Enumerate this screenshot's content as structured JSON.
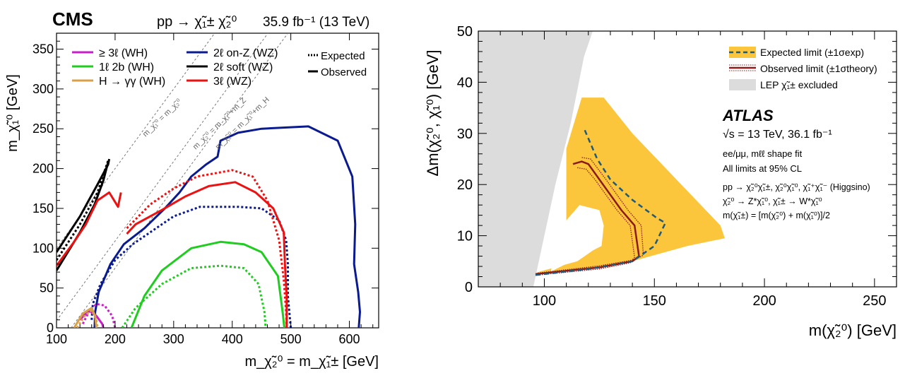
{
  "colors": {
    "magenta": "#c71fc7",
    "green": "#1fcc1f",
    "orange": "#d9a04a",
    "navy": "#0a1a8f",
    "black": "#000000",
    "red": "#ee1111",
    "dark_red": "#8b1a1a",
    "yellow": "#fbc63c",
    "dashblue": "#1f5a7a",
    "grey": "#dcdcdc"
  },
  "left_chart": {
    "experiment": "CMS",
    "process": "pp → χ̃₁± χ̃₂⁰",
    "lumi": "35.9 fb⁻¹ (13 TeV)",
    "xlabel": "m_χ̃₂⁰ = m_χ̃₁± [GeV]",
    "ylabel": "m_χ̃₁⁰ [GeV]",
    "xlim": [
      100,
      650
    ],
    "ylim": [
      0,
      370
    ],
    "x_ticks": [
      "100",
      "200",
      "300",
      "400",
      "500",
      "600"
    ],
    "y_ticks": [
      "0",
      "50",
      "100",
      "150",
      "200",
      "250",
      "300",
      "350"
    ],
    "diagonals": [
      {
        "label": "m_χ̃₁⁰ = m_χ̃₂⁰",
        "offset": 0
      },
      {
        "label": "m_χ̃₂⁰ = m_χ̃₁⁰+m_Z",
        "offset": 91
      },
      {
        "label": "m_χ̃₂⁰ = m_χ̃₁⁰+m_H",
        "offset": 125
      }
    ],
    "legend_left": [
      {
        "label": "≥ 3ℓ (WH)",
        "color_key": "magenta"
      },
      {
        "label": "1ℓ 2b (WH)",
        "color_key": "green"
      },
      {
        "label": "H → γγ (WH)",
        "color_key": "orange"
      }
    ],
    "legend_mid": [
      {
        "label": "2ℓ on-Z (WZ)",
        "color_key": "navy"
      },
      {
        "label": "2ℓ soft (WZ)",
        "color_key": "black"
      },
      {
        "label": "3ℓ (WZ)",
        "color_key": "red"
      }
    ],
    "legend_style": [
      {
        "label": "Expected",
        "style": "dotted"
      },
      {
        "label": "Observed",
        "style": "solid"
      }
    ],
    "series": [
      {
        "name": "2ℓ on-Z (WZ) observed",
        "color_key": "navy",
        "style": "solid",
        "points": [
          [
            165,
            0
          ],
          [
            166,
            20
          ],
          [
            172,
            45
          ],
          [
            192,
            80
          ],
          [
            215,
            105
          ],
          [
            250,
            125
          ],
          [
            285,
            150
          ],
          [
            310,
            170
          ],
          [
            330,
            190
          ],
          [
            355,
            205
          ],
          [
            375,
            215
          ],
          [
            380,
            235
          ],
          [
            410,
            245
          ],
          [
            450,
            250
          ],
          [
            530,
            253
          ],
          [
            580,
            235
          ],
          [
            605,
            190
          ],
          [
            610,
            130
          ],
          [
            608,
            80
          ],
          [
            615,
            45
          ],
          [
            618,
            20
          ],
          [
            616,
            0
          ]
        ]
      },
      {
        "name": "2ℓ on-Z (WZ) expected",
        "color_key": "navy",
        "style": "dotted",
        "points": [
          [
            160,
            10
          ],
          [
            162,
            30
          ],
          [
            175,
            55
          ],
          [
            200,
            85
          ],
          [
            230,
            105
          ],
          [
            270,
            125
          ],
          [
            300,
            140
          ],
          [
            345,
            152
          ],
          [
            410,
            152
          ],
          [
            450,
            150
          ],
          [
            480,
            135
          ],
          [
            492,
            110
          ],
          [
            495,
            80
          ],
          [
            495,
            40
          ],
          [
            500,
            0
          ]
        ]
      },
      {
        "name": "2ℓ soft (WZ) observed (right edge)",
        "color_key": "black",
        "style": "solid",
        "points": [
          [
            100,
            95
          ],
          [
            140,
            140
          ],
          [
            170,
            180
          ],
          [
            188,
            205
          ],
          [
            190,
            212
          ]
        ]
      },
      {
        "name": "2ℓ soft (WZ) observed (left edge)",
        "color_key": "black",
        "style": "solid",
        "points": [
          [
            100,
            72
          ],
          [
            140,
            120
          ],
          [
            165,
            155
          ],
          [
            180,
            185
          ],
          [
            188,
            208
          ]
        ]
      },
      {
        "name": "2ℓ soft (WZ) expected",
        "color_key": "black",
        "style": "dotted",
        "points": [
          [
            100,
            85
          ],
          [
            140,
            130
          ],
          [
            170,
            170
          ],
          [
            188,
            210
          ]
        ]
      },
      {
        "name": "3ℓ (WZ) observed, low-Δm",
        "color_key": "red",
        "style": "solid",
        "points": [
          [
            100,
            78
          ],
          [
            130,
            108
          ],
          [
            150,
            130
          ],
          [
            170,
            160
          ],
          [
            190,
            170
          ],
          [
            205,
            152
          ],
          [
            210,
            170
          ]
        ]
      },
      {
        "name": "3ℓ (WZ) observed",
        "color_key": "red",
        "style": "solid",
        "points": [
          [
            220,
            118
          ],
          [
            235,
            130
          ],
          [
            280,
            148
          ],
          [
            320,
            165
          ],
          [
            360,
            178
          ],
          [
            405,
            183
          ],
          [
            440,
            170
          ],
          [
            470,
            150
          ],
          [
            488,
            120
          ],
          [
            490,
            80
          ],
          [
            493,
            40
          ],
          [
            493,
            0
          ]
        ]
      },
      {
        "name": "3ℓ (WZ) expected",
        "color_key": "red",
        "style": "dotted",
        "points": [
          [
            220,
            125
          ],
          [
            240,
            140
          ],
          [
            260,
            155
          ],
          [
            300,
            175
          ],
          [
            340,
            190
          ],
          [
            400,
            198
          ],
          [
            435,
            190
          ],
          [
            460,
            160
          ],
          [
            480,
            110
          ],
          [
            488,
            60
          ],
          [
            492,
            20
          ],
          [
            493,
            0
          ]
        ]
      },
      {
        "name": "1ℓ 2b (WH) observed",
        "color_key": "green",
        "style": "solid",
        "points": [
          [
            228,
            0
          ],
          [
            250,
            40
          ],
          [
            280,
            72
          ],
          [
            330,
            100
          ],
          [
            380,
            108
          ],
          [
            420,
            105
          ],
          [
            450,
            95
          ],
          [
            478,
            65
          ],
          [
            486,
            20
          ],
          [
            489,
            0
          ]
        ]
      },
      {
        "name": "1ℓ 2b (WH) expected",
        "color_key": "green",
        "style": "dotted",
        "points": [
          [
            212,
            0
          ],
          [
            235,
            25
          ],
          [
            280,
            55
          ],
          [
            330,
            75
          ],
          [
            380,
            78
          ],
          [
            420,
            75
          ],
          [
            445,
            55
          ],
          [
            455,
            20
          ],
          [
            457,
            0
          ]
        ]
      },
      {
        "name": "≥ 3ℓ (WH) expected",
        "color_key": "magenta",
        "style": "dotted",
        "points": [
          [
            145,
            5
          ],
          [
            155,
            20
          ],
          [
            168,
            30
          ],
          [
            182,
            28
          ],
          [
            195,
            15
          ],
          [
            200,
            0
          ]
        ]
      },
      {
        "name": "≥ 3ℓ (WH) observed",
        "color_key": "magenta",
        "style": "solid",
        "points": [
          [
            140,
            10
          ],
          [
            155,
            22
          ],
          [
            168,
            15
          ],
          [
            178,
            5
          ],
          [
            180,
            0
          ]
        ]
      },
      {
        "name": "H → γγ (WH) observed",
        "color_key": "orange",
        "style": "solid",
        "points": [
          [
            130,
            0
          ],
          [
            145,
            18
          ],
          [
            160,
            25
          ],
          [
            166,
            15
          ],
          [
            168,
            0
          ]
        ]
      },
      {
        "name": "H → γγ (WH) expected",
        "color_key": "orange",
        "style": "dotted",
        "points": [
          [
            135,
            0
          ],
          [
            148,
            15
          ],
          [
            160,
            22
          ],
          [
            168,
            10
          ],
          [
            170,
            0
          ]
        ]
      }
    ]
  },
  "right_chart": {
    "experiment": "ATLAS",
    "energy": "√s = 13 TeV, 36.1 fb⁻¹",
    "fit": "ee/μμ, mℓℓ shape fit",
    "cl": "All limits at 95% CL",
    "proc1": "pp → χ̃₂⁰χ̃₁±, χ̃₂⁰χ̃₁⁰, χ̃₁⁺χ̃₁⁻ (Higgsino)",
    "proc2": "χ̃₂⁰ → Z*χ̃₁⁰, χ̃₁± → W*χ̃₁⁰",
    "proc3": "m(χ̃₁±) = [m(χ̃₂⁰) + m(χ̃₁⁰)]/2",
    "xlabel": "m(χ̃₂⁰) [GeV]",
    "ylabel": "Δm(χ̃₂⁰, χ̃₁⁰) [GeV]",
    "xlim": [
      70,
      260
    ],
    "ylim": [
      0,
      50
    ],
    "x_ticks": [
      "100",
      "150",
      "200",
      "250"
    ],
    "y_ticks": [
      "0",
      "10",
      "20",
      "30",
      "40",
      "50"
    ],
    "legend": [
      {
        "label": "Expected limit (±1σexp)",
        "kind": "band_dash"
      },
      {
        "label": "Observed limit (±1σtheory)",
        "kind": "red_line"
      },
      {
        "label": "LEP χ̃₁± excluded",
        "kind": "grey_box"
      }
    ],
    "lep_region": [
      [
        70,
        0
      ],
      [
        95,
        0
      ],
      [
        100,
        10
      ],
      [
        105,
        20
      ],
      [
        112,
        32
      ],
      [
        118,
        45
      ],
      [
        122,
        50
      ],
      [
        70,
        50
      ]
    ],
    "band_region": [
      [
        95,
        2.5
      ],
      [
        110,
        3
      ],
      [
        130,
        4
      ],
      [
        140,
        5
      ],
      [
        165,
        8
      ],
      [
        182,
        9.5
      ],
      [
        180,
        12
      ],
      [
        140,
        30
      ],
      [
        127,
        37
      ],
      [
        117,
        37
      ],
      [
        110,
        27
      ],
      [
        110,
        13
      ],
      [
        125,
        12
      ],
      [
        125,
        8
      ],
      [
        115,
        5
      ],
      [
        98,
        3
      ]
    ],
    "band_hole": [
      [
        110,
        13
      ],
      [
        116,
        16
      ],
      [
        125,
        15
      ],
      [
        127,
        12
      ],
      [
        126,
        8
      ],
      [
        110,
        4.5
      ],
      [
        103,
        3
      ],
      [
        105,
        8
      ]
    ],
    "expected": [
      [
        96,
        2.3
      ],
      [
        120,
        3.5
      ],
      [
        140,
        5
      ],
      [
        150,
        8
      ],
      [
        155,
        12.5
      ],
      [
        151,
        13.5
      ],
      [
        140,
        17
      ],
      [
        130,
        21
      ],
      [
        124,
        25
      ],
      [
        118,
        31
      ]
    ],
    "observed": [
      [
        96,
        2.5
      ],
      [
        125,
        3.8
      ],
      [
        140,
        5
      ],
      [
        143,
        6
      ],
      [
        141,
        12
      ],
      [
        135,
        15
      ],
      [
        125,
        21
      ],
      [
        120,
        24
      ],
      [
        117,
        24.5
      ],
      [
        113,
        24
      ]
    ],
    "observed_up": [
      [
        97,
        2.7
      ],
      [
        125,
        4.1
      ],
      [
        141,
        5.3
      ],
      [
        145,
        6.2
      ],
      [
        144,
        12
      ],
      [
        138,
        15
      ],
      [
        128,
        21
      ],
      [
        121,
        25
      ],
      [
        117,
        25.3
      ]
    ],
    "observed_dn": [
      [
        97,
        2.3
      ],
      [
        125,
        3.5
      ],
      [
        139,
        4.7
      ],
      [
        141,
        5.8
      ],
      [
        139,
        12
      ],
      [
        133,
        15
      ],
      [
        123,
        21
      ],
      [
        119,
        23
      ],
      [
        115,
        23.3
      ]
    ]
  }
}
